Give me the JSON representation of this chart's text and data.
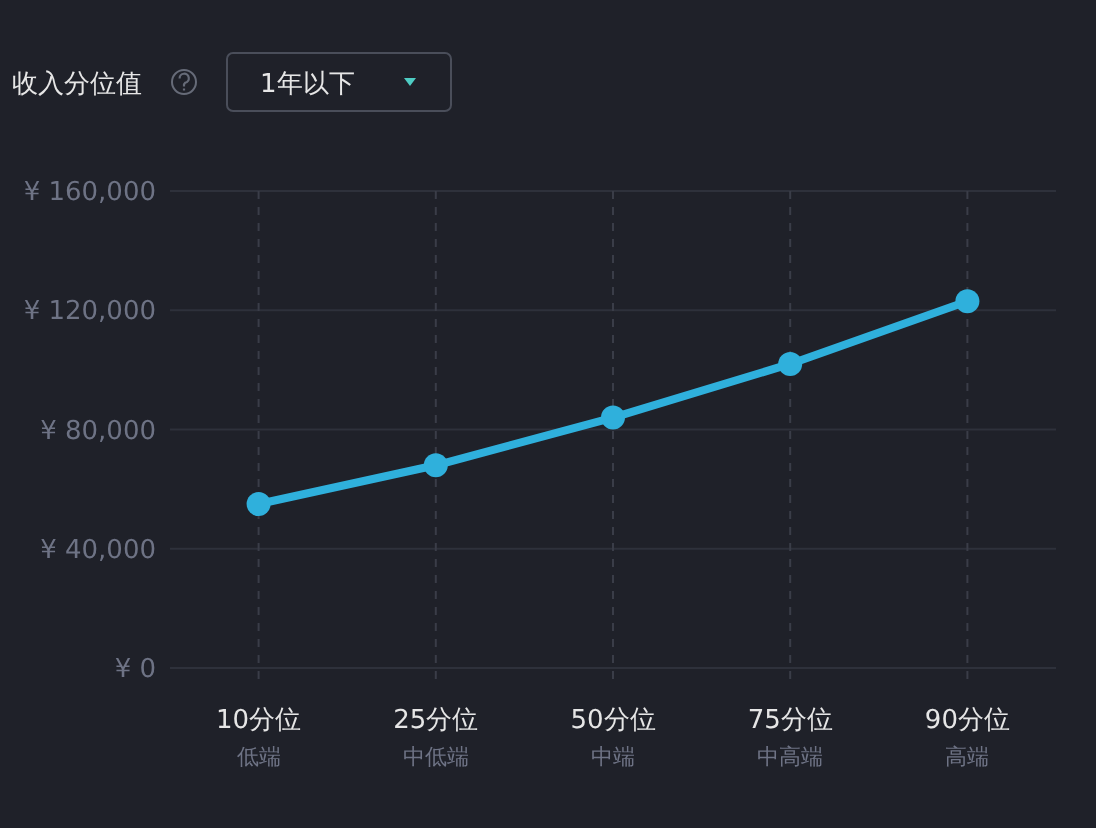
{
  "chart_data": {
    "type": "line",
    "title": "收入分位值",
    "subtitle": "1年以下",
    "categories": [
      "10分位",
      "25分位",
      "50分位",
      "75分位",
      "90分位"
    ],
    "annotations": [
      "低端",
      "中低端",
      "中端",
      "中高端",
      "高端"
    ],
    "series": [
      {
        "color": "#2fb0dc",
        "values": [
          55000,
          68000,
          84000,
          102000,
          123000
        ]
      }
    ],
    "ylim": [
      0,
      160000
    ],
    "yticks": [
      {
        "value": 0,
        "label": "¥ 0"
      },
      {
        "value": 40000,
        "label": "¥ 40,000"
      },
      {
        "value": 80000,
        "label": "¥ 80,000"
      },
      {
        "value": 120000,
        "label": "¥ 120,000"
      },
      {
        "value": 160000,
        "label": "¥ 160,000"
      }
    ],
    "grid": true,
    "marker": "circle",
    "line_style": "solid"
  }
}
